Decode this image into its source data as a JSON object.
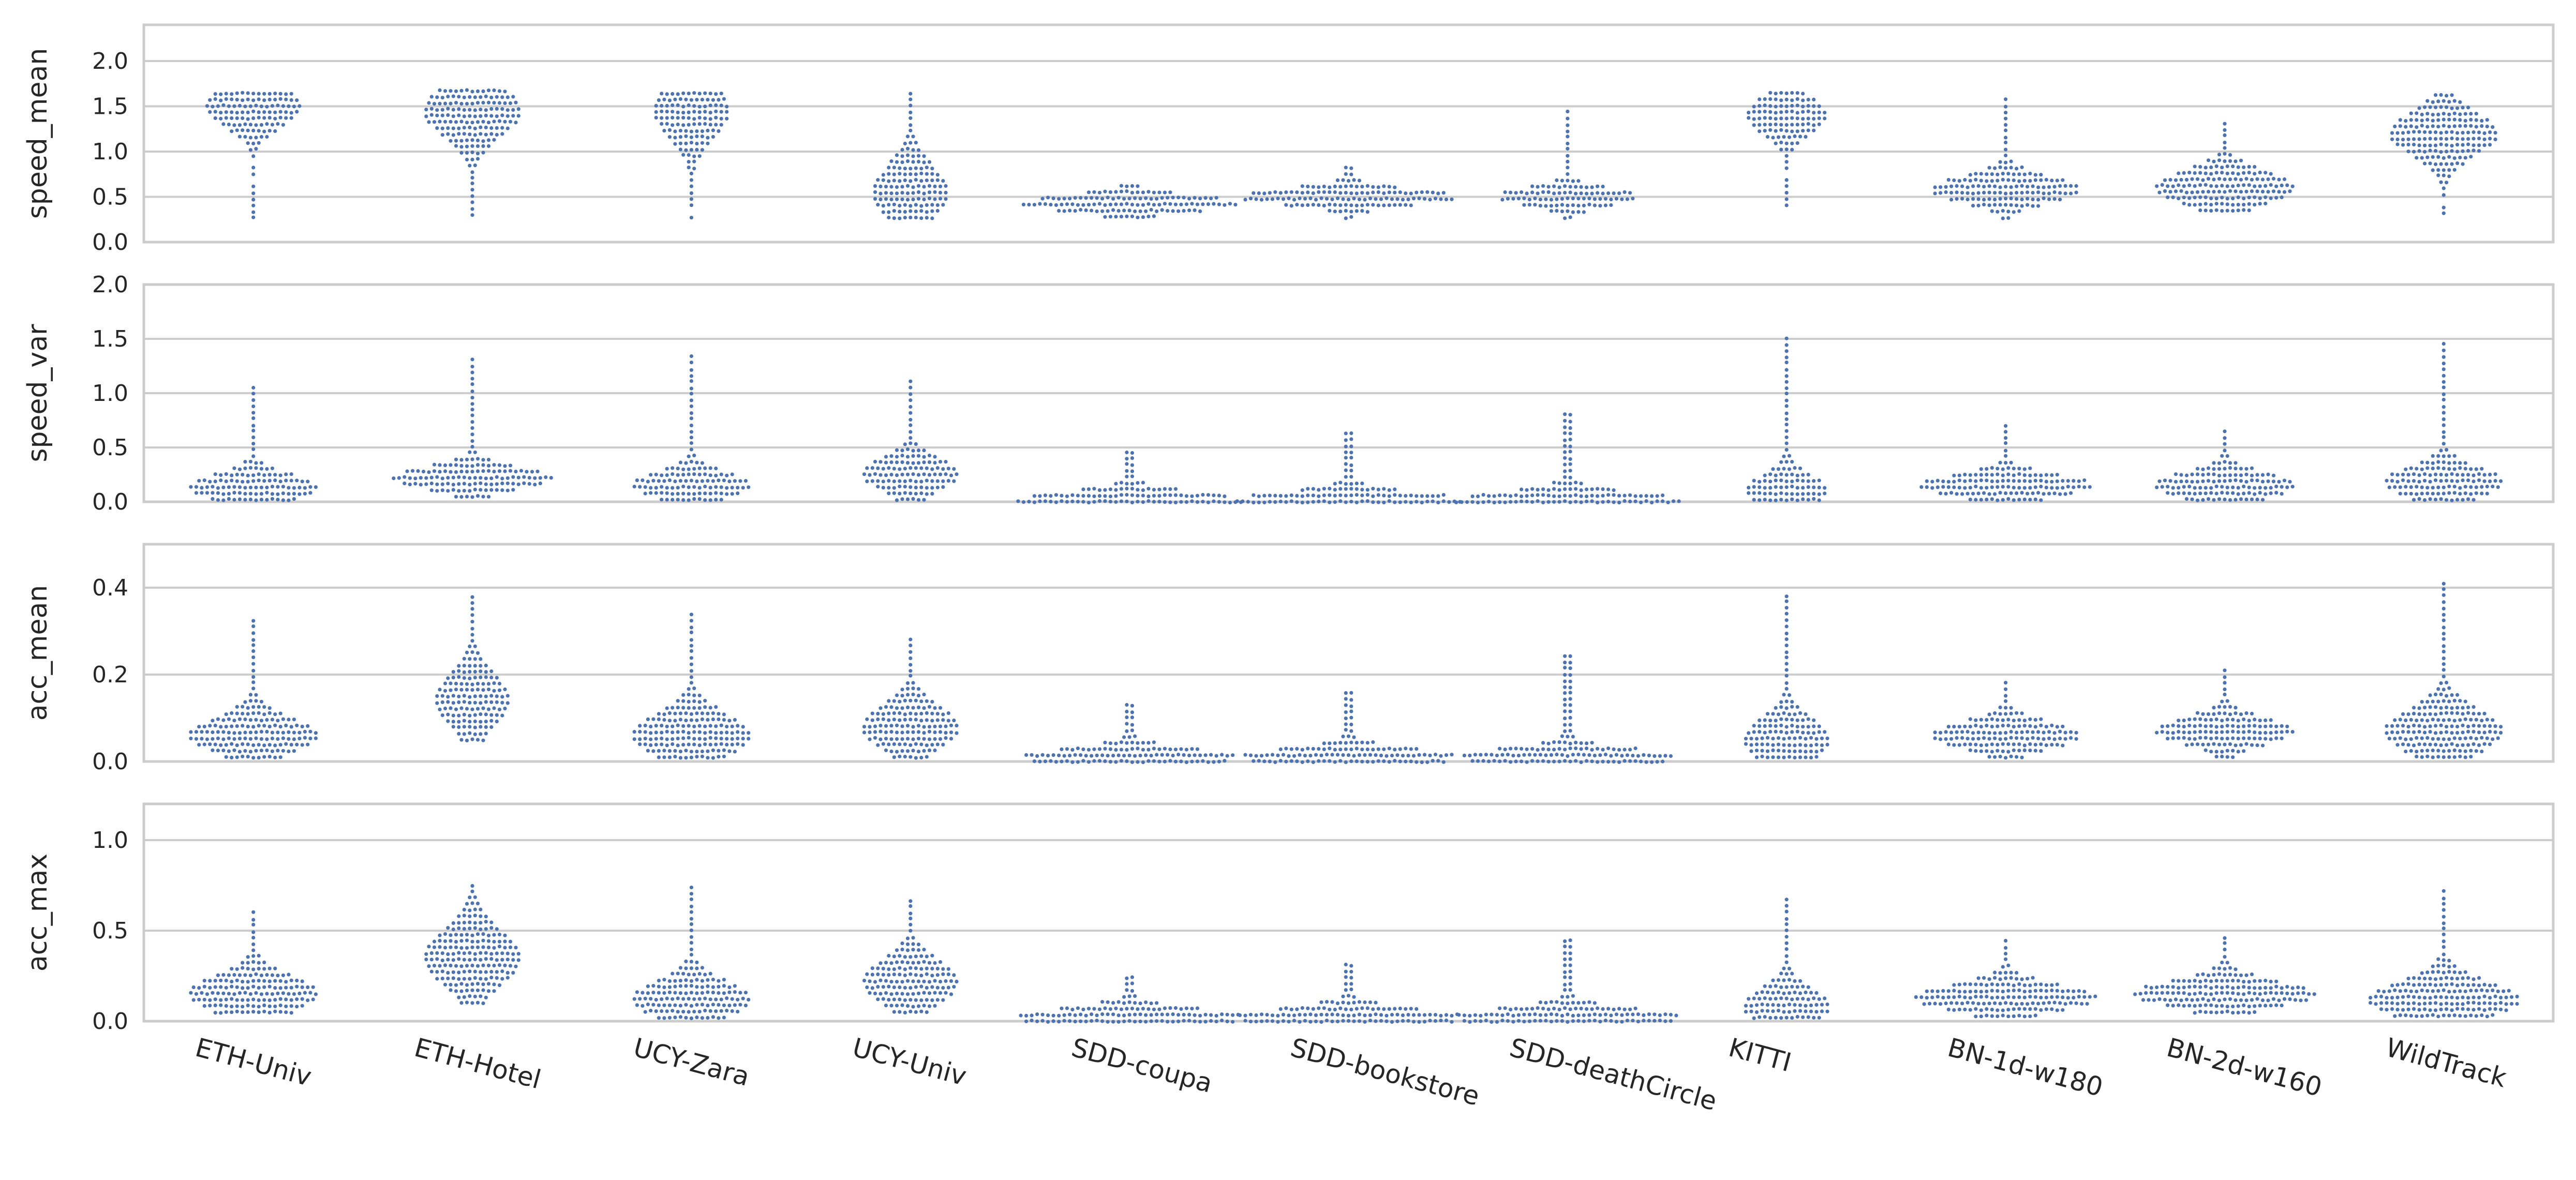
{
  "chart_data": {
    "type": "swarm",
    "figure_type": "stacked swarm plots (beeswarm), shared x-axis",
    "marker_color": "#4c72b0",
    "grid": true,
    "categories": [
      "ETH-Univ",
      "ETH-Hotel",
      "UCY-Zara",
      "UCY-Univ",
      "SDD-coupa",
      "SDD-bookstore",
      "SDD-deathCircle",
      "KITTI",
      "BN-1d-w180",
      "BN-2d-w160",
      "WildTrack"
    ],
    "panels": [
      {
        "ylabel": "speed_mean",
        "ylim": [
          0,
          2.4
        ],
        "yticks": [
          "0.0",
          "0.5",
          "1.0",
          "1.5",
          "2.0"
        ],
        "distributions": [
          {
            "min": 0.27,
            "max": 1.68,
            "mode": 1.5,
            "spread": 0.22,
            "width": 0.45
          },
          {
            "min": 0.3,
            "max": 1.7,
            "mode": 1.45,
            "spread": 0.28,
            "width": 0.45
          },
          {
            "min": 0.27,
            "max": 1.7,
            "mode": 1.45,
            "spread": 0.3,
            "width": 0.35
          },
          {
            "min": 0.27,
            "max": 1.7,
            "mode": 0.55,
            "spread": 0.3,
            "width": 0.35
          },
          {
            "min": 0.28,
            "max": 0.68,
            "mode": 0.43,
            "spread": 0.09,
            "width": 1.0
          },
          {
            "min": 0.27,
            "max": 0.88,
            "mode": 0.5,
            "spread": 0.09,
            "width": 1.0
          },
          {
            "min": 0.27,
            "max": 1.45,
            "mode": 0.5,
            "spread": 0.1,
            "width": 0.65
          },
          {
            "min": 0.27,
            "max": 1.68,
            "mode": 1.4,
            "spread": 0.2,
            "width": 0.38
          },
          {
            "min": 0.27,
            "max": 1.58,
            "mode": 0.58,
            "spread": 0.14,
            "width": 0.7
          },
          {
            "min": 0.35,
            "max": 1.33,
            "mode": 0.6,
            "spread": 0.18,
            "width": 0.65
          },
          {
            "min": 0.25,
            "max": 1.68,
            "mode": 1.2,
            "spread": 0.24,
            "width": 0.5
          }
        ]
      },
      {
        "ylabel": "speed_var",
        "ylim": [
          0,
          2.0
        ],
        "yticks": [
          "0.0",
          "0.5",
          "1.0",
          "1.5",
          "2.0"
        ],
        "distributions": [
          {
            "min": 0.02,
            "max": 1.07,
            "mode": 0.13,
            "spread": 0.12,
            "width": 0.6
          },
          {
            "min": 0.05,
            "max": 1.33,
            "mode": 0.22,
            "spread": 0.1,
            "width": 0.75
          },
          {
            "min": 0.02,
            "max": 1.35,
            "mode": 0.15,
            "spread": 0.12,
            "width": 0.55
          },
          {
            "min": 0.02,
            "max": 1.12,
            "mode": 0.25,
            "spread": 0.15,
            "width": 0.45
          },
          {
            "min": 0.0,
            "max": 0.48,
            "mode": 0.01,
            "spread": 0.08,
            "width": 1.05
          },
          {
            "min": 0.0,
            "max": 0.66,
            "mode": 0.01,
            "spread": 0.08,
            "width": 1.05
          },
          {
            "min": 0.0,
            "max": 0.85,
            "mode": 0.01,
            "spread": 0.08,
            "width": 1.05
          },
          {
            "min": 0.02,
            "max": 1.55,
            "mode": 0.1,
            "spread": 0.15,
            "width": 0.38
          },
          {
            "min": 0.02,
            "max": 0.73,
            "mode": 0.15,
            "spread": 0.1,
            "width": 0.8
          },
          {
            "min": 0.02,
            "max": 0.68,
            "mode": 0.15,
            "spread": 0.12,
            "width": 0.65
          },
          {
            "min": 0.02,
            "max": 1.45,
            "mode": 0.18,
            "spread": 0.14,
            "width": 0.55
          }
        ]
      },
      {
        "ylabel": "acc_mean",
        "ylim": [
          0,
          0.5
        ],
        "yticks": [
          "0.0",
          "0.2",
          "0.4"
        ],
        "distributions": [
          {
            "min": 0.01,
            "max": 0.33,
            "mode": 0.06,
            "spread": 0.04,
            "width": 0.6
          },
          {
            "min": 0.05,
            "max": 0.39,
            "mode": 0.14,
            "spread": 0.06,
            "width": 0.35
          },
          {
            "min": 0.01,
            "max": 0.35,
            "mode": 0.06,
            "spread": 0.05,
            "width": 0.55
          },
          {
            "min": 0.01,
            "max": 0.29,
            "mode": 0.08,
            "spread": 0.05,
            "width": 0.45
          },
          {
            "min": 0.0,
            "max": 0.13,
            "mode": 0.01,
            "spread": 0.02,
            "width": 1.0
          },
          {
            "min": 0.0,
            "max": 0.17,
            "mode": 0.01,
            "spread": 0.02,
            "width": 1.0
          },
          {
            "min": 0.0,
            "max": 0.25,
            "mode": 0.01,
            "spread": 0.02,
            "width": 1.0
          },
          {
            "min": 0.01,
            "max": 0.39,
            "mode": 0.05,
            "spread": 0.05,
            "width": 0.4
          },
          {
            "min": 0.01,
            "max": 0.19,
            "mode": 0.06,
            "spread": 0.03,
            "width": 0.7
          },
          {
            "min": 0.01,
            "max": 0.21,
            "mode": 0.07,
            "spread": 0.03,
            "width": 0.65
          },
          {
            "min": 0.01,
            "max": 0.42,
            "mode": 0.07,
            "spread": 0.05,
            "width": 0.55
          }
        ]
      },
      {
        "ylabel": "acc_max",
        "ylim": [
          0,
          1.2
        ],
        "yticks": [
          "0.0",
          "0.5",
          "1.0"
        ],
        "distributions": [
          {
            "min": 0.05,
            "max": 0.6,
            "mode": 0.15,
            "spread": 0.1,
            "width": 0.6
          },
          {
            "min": 0.1,
            "max": 0.75,
            "mode": 0.35,
            "spread": 0.15,
            "width": 0.45
          },
          {
            "min": 0.02,
            "max": 0.75,
            "mode": 0.12,
            "spread": 0.1,
            "width": 0.55
          },
          {
            "min": 0.05,
            "max": 0.67,
            "mode": 0.22,
            "spread": 0.12,
            "width": 0.45
          },
          {
            "min": 0.0,
            "max": 0.25,
            "mode": 0.02,
            "spread": 0.05,
            "width": 1.05
          },
          {
            "min": 0.0,
            "max": 0.33,
            "mode": 0.02,
            "spread": 0.05,
            "width": 1.05
          },
          {
            "min": 0.0,
            "max": 0.45,
            "mode": 0.02,
            "spread": 0.05,
            "width": 1.05
          },
          {
            "min": 0.02,
            "max": 0.7,
            "mode": 0.08,
            "spread": 0.1,
            "width": 0.4
          },
          {
            "min": 0.03,
            "max": 0.46,
            "mode": 0.13,
            "spread": 0.07,
            "width": 0.85
          },
          {
            "min": 0.05,
            "max": 0.48,
            "mode": 0.15,
            "spread": 0.07,
            "width": 0.85
          },
          {
            "min": 0.03,
            "max": 0.73,
            "mode": 0.12,
            "spread": 0.1,
            "width": 0.7
          }
        ]
      }
    ]
  }
}
